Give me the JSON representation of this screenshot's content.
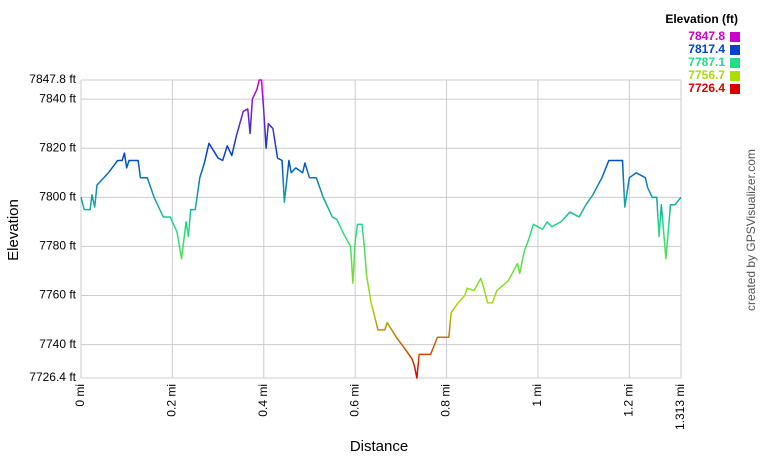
{
  "chart_data": {
    "type": "line",
    "x_label": "Distance",
    "y_label": "Elevation",
    "credit": "created by GPSVisualizer.com",
    "legend_title": "Elevation (ft)",
    "grid": true,
    "xlim": [
      0,
      1.313
    ],
    "ylim": [
      7726.4,
      7847.8
    ],
    "xticks": [
      {
        "value": 0,
        "label": "0 mi"
      },
      {
        "value": 0.2,
        "label": "0.2 mi"
      },
      {
        "value": 0.4,
        "label": "0.4 mi"
      },
      {
        "value": 0.6,
        "label": "0.6 mi"
      },
      {
        "value": 0.8,
        "label": "0.8 mi"
      },
      {
        "value": 1,
        "label": "1 mi"
      },
      {
        "value": 1.2,
        "label": "1.2 mi"
      },
      {
        "value": 1.313,
        "label": "1.313 mi"
      }
    ],
    "yticks": [
      {
        "value": 7726.4,
        "label": "7726.4 ft"
      },
      {
        "value": 7740,
        "label": "7740 ft"
      },
      {
        "value": 7760,
        "label": "7760 ft"
      },
      {
        "value": 7780,
        "label": "7780 ft"
      },
      {
        "value": 7800,
        "label": "7800 ft"
      },
      {
        "value": 7820,
        "label": "7820 ft"
      },
      {
        "value": 7840,
        "label": "7840 ft"
      },
      {
        "value": 7847.8,
        "label": "7847.8 ft"
      }
    ],
    "color_scale": [
      {
        "value": 7847.8,
        "color": "#cc00cc"
      },
      {
        "value": 7817.4,
        "color": "#0044cc"
      },
      {
        "value": 7787.1,
        "color": "#22dd88"
      },
      {
        "value": 7756.7,
        "color": "#aadd00"
      },
      {
        "value": 7726.4,
        "color": "#dd0000"
      }
    ],
    "x": [
      0,
      0.007,
      0.02,
      0.024,
      0.03,
      0.035,
      0.05,
      0.06,
      0.08,
      0.09,
      0.095,
      0.1,
      0.105,
      0.125,
      0.13,
      0.145,
      0.16,
      0.18,
      0.195,
      0.21,
      0.22,
      0.23,
      0.235,
      0.24,
      0.25,
      0.26,
      0.27,
      0.28,
      0.3,
      0.31,
      0.32,
      0.33,
      0.34,
      0.355,
      0.365,
      0.37,
      0.375,
      0.385,
      0.39,
      0.395,
      0.4,
      0.405,
      0.41,
      0.42,
      0.43,
      0.44,
      0.445,
      0.455,
      0.46,
      0.47,
      0.485,
      0.49,
      0.5,
      0.515,
      0.53,
      0.55,
      0.56,
      0.575,
      0.59,
      0.595,
      0.6,
      0.605,
      0.615,
      0.62,
      0.625,
      0.635,
      0.65,
      0.665,
      0.67,
      0.69,
      0.71,
      0.725,
      0.73,
      0.735,
      0.74,
      0.765,
      0.78,
      0.805,
      0.81,
      0.825,
      0.84,
      0.845,
      0.86,
      0.875,
      0.88,
      0.89,
      0.9,
      0.91,
      0.935,
      0.955,
      0.96,
      0.97,
      0.98,
      0.99,
      1.01,
      1.02,
      1.03,
      1.05,
      1.07,
      1.09,
      1.105,
      1.12,
      1.14,
      1.155,
      1.185,
      1.19,
      1.2,
      1.215,
      1.235,
      1.24,
      1.25,
      1.26,
      1.265,
      1.27,
      1.28,
      1.29,
      1.3,
      1.313
    ],
    "values": [
      7800,
      7795,
      7795,
      7801,
      7796,
      7805,
      7808,
      7810,
      7815,
      7815,
      7818,
      7812,
      7815,
      7815,
      7808,
      7808,
      7800,
      7792,
      7792,
      7786,
      7775,
      7790,
      7784,
      7795,
      7795,
      7808,
      7814,
      7822,
      7816,
      7815,
      7821,
      7817,
      7825,
      7835,
      7836,
      7826,
      7840,
      7844,
      7847.8,
      7847.8,
      7835,
      7820,
      7830,
      7828,
      7816,
      7815,
      7798,
      7815,
      7810,
      7812,
      7810,
      7814,
      7808,
      7808,
      7800,
      7792,
      7791,
      7785,
      7780,
      7765,
      7782,
      7789,
      7789,
      7780,
      7768,
      7757,
      7746,
      7746,
      7749,
      7743,
      7738,
      7734,
      7731,
      7726.4,
      7736,
      7736,
      7743,
      7743,
      7753,
      7757,
      7760,
      7763,
      7762,
      7767,
      7764,
      7757,
      7757,
      7762,
      7766,
      7773,
      7769,
      7778,
      7783,
      7789,
      7787,
      7790,
      7788,
      7790,
      7794,
      7792,
      7797,
      7801,
      7808,
      7815,
      7815,
      7796,
      7808,
      7810,
      7808,
      7804,
      7800,
      7800,
      7784,
      7797,
      7775,
      7797,
      7797,
      7800
    ]
  }
}
